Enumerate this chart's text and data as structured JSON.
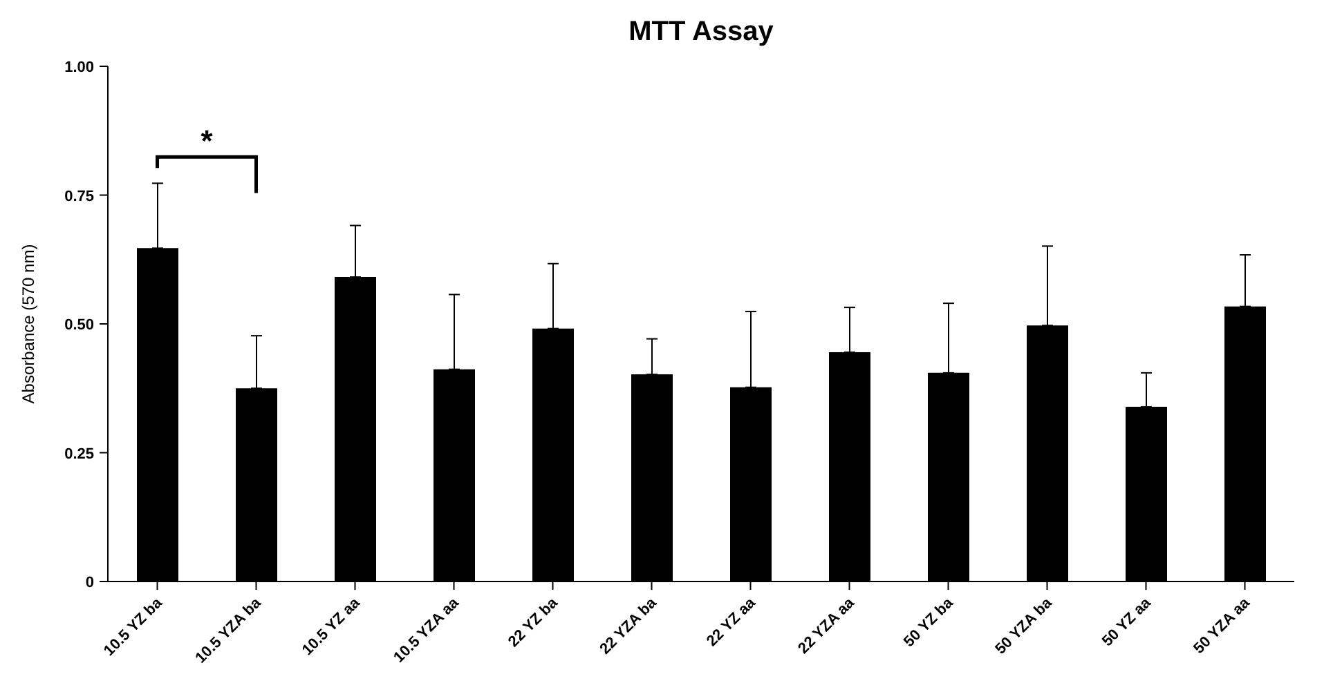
{
  "chart_data": {
    "type": "bar",
    "title": "MTT Assay",
    "ylabel": "Absorbance (570 nm)",
    "categories": [
      "10.5 YZ ba",
      "10.5 YZA ba",
      "10.5 YZ aa",
      "10.5 YZA aa",
      "22 YZ ba",
      "22 YZA ba",
      "22 YZ aa",
      "22 YZA aa",
      "50 YZ ba",
      "50 YZA ba",
      "50 YZ aa",
      "50 YZA aa"
    ],
    "values": [
      0.647,
      0.375,
      0.591,
      0.412,
      0.491,
      0.402,
      0.377,
      0.445,
      0.405,
      0.497,
      0.339,
      0.534
    ],
    "errors": [
      [
        0.647,
        0.773
      ],
      [
        0.375,
        0.477
      ],
      [
        0.591,
        0.691
      ],
      [
        0.412,
        0.557
      ],
      [
        0.491,
        0.617
      ],
      [
        0.402,
        0.471
      ],
      [
        0.377,
        0.524
      ],
      [
        0.445,
        0.532
      ],
      [
        0.405,
        0.54
      ],
      [
        0.497,
        0.651
      ],
      [
        0.339,
        0.405
      ],
      [
        0.534,
        0.634
      ]
    ],
    "color": "#000000",
    "ylim": [
      0,
      1
    ],
    "yticks": [
      0,
      {
        "value": 0.25,
        "label": "0.25"
      },
      {
        "value": 0.5,
        "label": "0.50"
      },
      {
        "value": 0.75,
        "label": "0.75"
      },
      {
        "value": 1,
        "label": "1.00"
      }
    ],
    "grid": false,
    "annotations": [
      "*"
    ]
  }
}
